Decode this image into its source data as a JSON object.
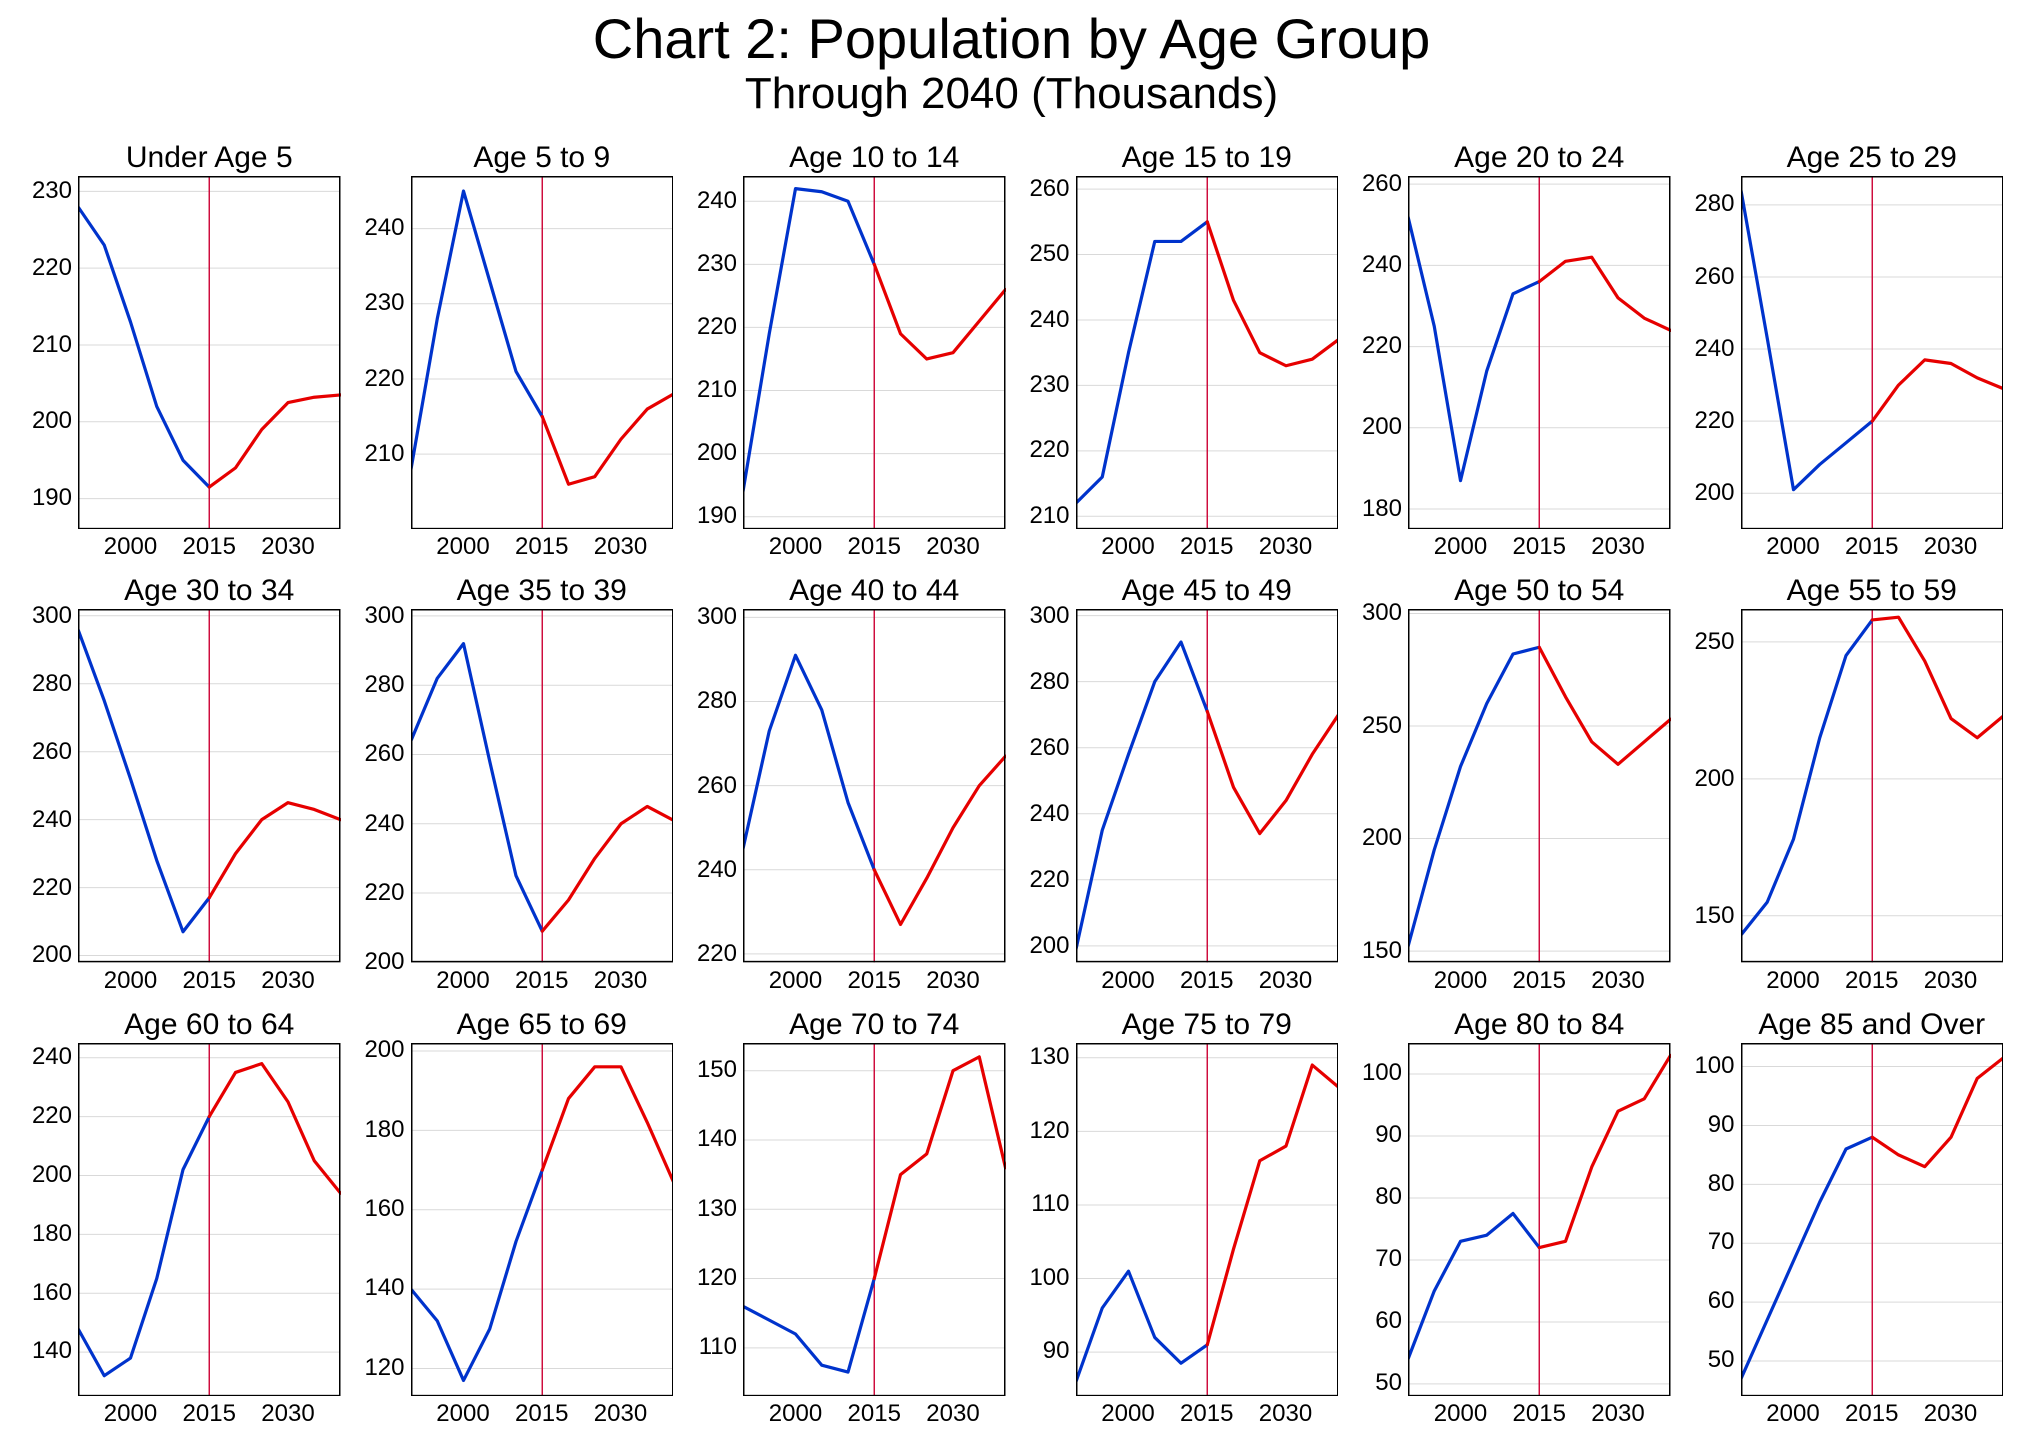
{
  "title_main": "Chart 2: Population by Age Group",
  "title_sub": "Through 2040 (Thousands)",
  "title_main_fontsize": 56,
  "title_sub_fontsize": 44,
  "panel_title_fontsize": 30,
  "tick_fontsize": 24,
  "layout": {
    "rows": 3,
    "cols": 6,
    "outer_padding_x": 20,
    "outer_padding_top": 8,
    "title_block_height": 140,
    "grid_gap_x": 12,
    "grid_gap_y": 10,
    "panel_title_height": 36,
    "y_axis_gutter": 58,
    "x_axis_gutter": 34,
    "box_border_width": 1.5
  },
  "colors": {
    "background": "#ffffff",
    "text": "#000000",
    "border": "#000000",
    "grid": "#d9d9d9",
    "series_blue": "#0033cc",
    "series_red": "#e60000",
    "vline": "#cc0033"
  },
  "line_width": 3.2,
  "vline_width": 1.4,
  "x_domain": [
    1990,
    2040
  ],
  "x_ticks": [
    2000,
    2015,
    2030
  ],
  "x_tick_labels": [
    "2000",
    "2015",
    "2030"
  ],
  "vline_year": 2015,
  "handoff_year": 2015,
  "panels": [
    {
      "title": "Under Age 5",
      "ylim": [
        186,
        232
      ],
      "yticks": [
        190,
        200,
        210,
        220,
        230
      ],
      "series": [
        {
          "x": 1990,
          "y": 228
        },
        {
          "x": 1995,
          "y": 223
        },
        {
          "x": 2000,
          "y": 213
        },
        {
          "x": 2005,
          "y": 202
        },
        {
          "x": 2010,
          "y": 195
        },
        {
          "x": 2015,
          "y": 191.5
        },
        {
          "x": 2020,
          "y": 194
        },
        {
          "x": 2025,
          "y": 199
        },
        {
          "x": 2030,
          "y": 202.5
        },
        {
          "x": 2035,
          "y": 203.2
        },
        {
          "x": 2040,
          "y": 203.5
        }
      ]
    },
    {
      "title": "Age 5 to 9",
      "ylim": [
        200,
        247
      ],
      "yticks": [
        210,
        220,
        230,
        240
      ],
      "series": [
        {
          "x": 1990,
          "y": 208
        },
        {
          "x": 1995,
          "y": 228
        },
        {
          "x": 2000,
          "y": 245
        },
        {
          "x": 2005,
          "y": 233
        },
        {
          "x": 2010,
          "y": 221
        },
        {
          "x": 2015,
          "y": 215
        },
        {
          "x": 2020,
          "y": 206
        },
        {
          "x": 2025,
          "y": 207
        },
        {
          "x": 2030,
          "y": 212
        },
        {
          "x": 2035,
          "y": 216
        },
        {
          "x": 2040,
          "y": 218
        }
      ]
    },
    {
      "title": "Age 10 to 14",
      "ylim": [
        188,
        244
      ],
      "yticks": [
        190,
        200,
        210,
        220,
        230,
        240
      ],
      "series": [
        {
          "x": 1990,
          "y": 194
        },
        {
          "x": 1995,
          "y": 219
        },
        {
          "x": 2000,
          "y": 242
        },
        {
          "x": 2005,
          "y": 241.5
        },
        {
          "x": 2010,
          "y": 240
        },
        {
          "x": 2015,
          "y": 230
        },
        {
          "x": 2020,
          "y": 219
        },
        {
          "x": 2025,
          "y": 215
        },
        {
          "x": 2030,
          "y": 216
        },
        {
          "x": 2035,
          "y": 221
        },
        {
          "x": 2040,
          "y": 226
        }
      ]
    },
    {
      "title": "Age 15 to 19",
      "ylim": [
        208,
        262
      ],
      "yticks": [
        210,
        220,
        230,
        240,
        250,
        260
      ],
      "series": [
        {
          "x": 1990,
          "y": 212
        },
        {
          "x": 1995,
          "y": 216
        },
        {
          "x": 2000,
          "y": 235
        },
        {
          "x": 2005,
          "y": 252
        },
        {
          "x": 2010,
          "y": 252
        },
        {
          "x": 2015,
          "y": 255
        },
        {
          "x": 2020,
          "y": 243
        },
        {
          "x": 2025,
          "y": 235
        },
        {
          "x": 2030,
          "y": 233
        },
        {
          "x": 2035,
          "y": 234
        },
        {
          "x": 2040,
          "y": 237
        }
      ]
    },
    {
      "title": "Age 20 to 24",
      "ylim": [
        175,
        262
      ],
      "yticks": [
        180,
        200,
        220,
        240,
        260
      ],
      "series": [
        {
          "x": 1990,
          "y": 252
        },
        {
          "x": 1995,
          "y": 225
        },
        {
          "x": 2000,
          "y": 187
        },
        {
          "x": 2005,
          "y": 214
        },
        {
          "x": 2010,
          "y": 233
        },
        {
          "x": 2015,
          "y": 236
        },
        {
          "x": 2020,
          "y": 241
        },
        {
          "x": 2025,
          "y": 242
        },
        {
          "x": 2030,
          "y": 232
        },
        {
          "x": 2035,
          "y": 227
        },
        {
          "x": 2040,
          "y": 224
        }
      ]
    },
    {
      "title": "Age 25 to 29",
      "ylim": [
        190,
        288
      ],
      "yticks": [
        200,
        220,
        240,
        260,
        280
      ],
      "series": [
        {
          "x": 1990,
          "y": 284
        },
        {
          "x": 1995,
          "y": 243
        },
        {
          "x": 2000,
          "y": 201
        },
        {
          "x": 2005,
          "y": 208
        },
        {
          "x": 2010,
          "y": 214
        },
        {
          "x": 2015,
          "y": 220
        },
        {
          "x": 2020,
          "y": 230
        },
        {
          "x": 2025,
          "y": 237
        },
        {
          "x": 2030,
          "y": 236
        },
        {
          "x": 2035,
          "y": 232
        },
        {
          "x": 2040,
          "y": 229
        }
      ]
    },
    {
      "title": "Age 30 to 34",
      "ylim": [
        198,
        302
      ],
      "yticks": [
        200,
        220,
        240,
        260,
        280,
        300
      ],
      "series": [
        {
          "x": 1990,
          "y": 296
        },
        {
          "x": 1995,
          "y": 275
        },
        {
          "x": 2000,
          "y": 252
        },
        {
          "x": 2005,
          "y": 228
        },
        {
          "x": 2010,
          "y": 207
        },
        {
          "x": 2015,
          "y": 217
        },
        {
          "x": 2020,
          "y": 230
        },
        {
          "x": 2025,
          "y": 240
        },
        {
          "x": 2030,
          "y": 245
        },
        {
          "x": 2035,
          "y": 243
        },
        {
          "x": 2040,
          "y": 240
        }
      ]
    },
    {
      "title": "Age 35 to 39",
      "ylim": [
        200,
        302
      ],
      "yticks": [
        200,
        220,
        240,
        260,
        280,
        300
      ],
      "series": [
        {
          "x": 1990,
          "y": 264
        },
        {
          "x": 1995,
          "y": 282
        },
        {
          "x": 2000,
          "y": 292
        },
        {
          "x": 2005,
          "y": 258
        },
        {
          "x": 2010,
          "y": 225
        },
        {
          "x": 2015,
          "y": 209
        },
        {
          "x": 2020,
          "y": 218
        },
        {
          "x": 2025,
          "y": 230
        },
        {
          "x": 2030,
          "y": 240
        },
        {
          "x": 2035,
          "y": 245
        },
        {
          "x": 2040,
          "y": 241
        }
      ]
    },
    {
      "title": "Age 40 to 44",
      "ylim": [
        218,
        302
      ],
      "yticks": [
        220,
        240,
        260,
        280,
        300
      ],
      "series": [
        {
          "x": 1990,
          "y": 245
        },
        {
          "x": 1995,
          "y": 273
        },
        {
          "x": 2000,
          "y": 291
        },
        {
          "x": 2005,
          "y": 278
        },
        {
          "x": 2010,
          "y": 256
        },
        {
          "x": 2015,
          "y": 240
        },
        {
          "x": 2020,
          "y": 227
        },
        {
          "x": 2025,
          "y": 238
        },
        {
          "x": 2030,
          "y": 250
        },
        {
          "x": 2035,
          "y": 260
        },
        {
          "x": 2040,
          "y": 267
        }
      ]
    },
    {
      "title": "Age 45 to 49",
      "ylim": [
        195,
        302
      ],
      "yticks": [
        200,
        220,
        240,
        260,
        280,
        300
      ],
      "series": [
        {
          "x": 1990,
          "y": 199
        },
        {
          "x": 1995,
          "y": 235
        },
        {
          "x": 2000,
          "y": 258
        },
        {
          "x": 2005,
          "y": 280
        },
        {
          "x": 2010,
          "y": 292
        },
        {
          "x": 2015,
          "y": 271
        },
        {
          "x": 2020,
          "y": 248
        },
        {
          "x": 2025,
          "y": 234
        },
        {
          "x": 2030,
          "y": 244
        },
        {
          "x": 2035,
          "y": 258
        },
        {
          "x": 2040,
          "y": 270
        }
      ]
    },
    {
      "title": "Age 50 to 54",
      "ylim": [
        145,
        302
      ],
      "yticks": [
        150,
        200,
        250,
        300
      ],
      "series": [
        {
          "x": 1990,
          "y": 152
        },
        {
          "x": 1995,
          "y": 195
        },
        {
          "x": 2000,
          "y": 232
        },
        {
          "x": 2005,
          "y": 260
        },
        {
          "x": 2010,
          "y": 282
        },
        {
          "x": 2015,
          "y": 285
        },
        {
          "x": 2020,
          "y": 263
        },
        {
          "x": 2025,
          "y": 243
        },
        {
          "x": 2030,
          "y": 233
        },
        {
          "x": 2035,
          "y": 243
        },
        {
          "x": 2040,
          "y": 253
        }
      ]
    },
    {
      "title": "Age 55 to 59",
      "ylim": [
        133,
        262
      ],
      "yticks": [
        150,
        200,
        250
      ],
      "series": [
        {
          "x": 1990,
          "y": 143
        },
        {
          "x": 1995,
          "y": 155
        },
        {
          "x": 2000,
          "y": 178
        },
        {
          "x": 2005,
          "y": 215
        },
        {
          "x": 2010,
          "y": 245
        },
        {
          "x": 2015,
          "y": 258
        },
        {
          "x": 2020,
          "y": 259
        },
        {
          "x": 2025,
          "y": 243
        },
        {
          "x": 2030,
          "y": 222
        },
        {
          "x": 2035,
          "y": 215
        },
        {
          "x": 2040,
          "y": 223
        }
      ]
    },
    {
      "title": "Age 60 to 64",
      "ylim": [
        125,
        245
      ],
      "yticks": [
        140,
        160,
        180,
        200,
        220,
        240
      ],
      "series": [
        {
          "x": 1990,
          "y": 148
        },
        {
          "x": 1995,
          "y": 132
        },
        {
          "x": 2000,
          "y": 138
        },
        {
          "x": 2005,
          "y": 165
        },
        {
          "x": 2010,
          "y": 202
        },
        {
          "x": 2015,
          "y": 220
        },
        {
          "x": 2020,
          "y": 235
        },
        {
          "x": 2025,
          "y": 238
        },
        {
          "x": 2030,
          "y": 225
        },
        {
          "x": 2035,
          "y": 205
        },
        {
          "x": 2040,
          "y": 194
        }
      ]
    },
    {
      "title": "Age 65 to 69",
      "ylim": [
        113,
        202
      ],
      "yticks": [
        120,
        140,
        160,
        180,
        200
      ],
      "series": [
        {
          "x": 1990,
          "y": 140
        },
        {
          "x": 1995,
          "y": 132
        },
        {
          "x": 2000,
          "y": 117
        },
        {
          "x": 2005,
          "y": 130
        },
        {
          "x": 2010,
          "y": 152
        },
        {
          "x": 2015,
          "y": 170
        },
        {
          "x": 2020,
          "y": 188
        },
        {
          "x": 2025,
          "y": 196
        },
        {
          "x": 2030,
          "y": 196
        },
        {
          "x": 2035,
          "y": 182
        },
        {
          "x": 2040,
          "y": 167
        }
      ]
    },
    {
      "title": "Age 70 to 74",
      "ylim": [
        103,
        154
      ],
      "yticks": [
        110,
        120,
        130,
        140,
        150
      ],
      "series": [
        {
          "x": 1990,
          "y": 116
        },
        {
          "x": 1995,
          "y": 114
        },
        {
          "x": 2000,
          "y": 112
        },
        {
          "x": 2005,
          "y": 107.5
        },
        {
          "x": 2010,
          "y": 106.5
        },
        {
          "x": 2015,
          "y": 120
        },
        {
          "x": 2020,
          "y": 135
        },
        {
          "x": 2025,
          "y": 138
        },
        {
          "x": 2030,
          "y": 150
        },
        {
          "x": 2035,
          "y": 152
        },
        {
          "x": 2040,
          "y": 136
        }
      ]
    },
    {
      "title": "Age 75 to 79",
      "ylim": [
        84,
        132
      ],
      "yticks": [
        90,
        100,
        110,
        120,
        130
      ],
      "series": [
        {
          "x": 1990,
          "y": 86
        },
        {
          "x": 1995,
          "y": 96
        },
        {
          "x": 2000,
          "y": 101
        },
        {
          "x": 2005,
          "y": 92
        },
        {
          "x": 2010,
          "y": 88.5
        },
        {
          "x": 2015,
          "y": 91
        },
        {
          "x": 2020,
          "y": 104
        },
        {
          "x": 2025,
          "y": 116
        },
        {
          "x": 2030,
          "y": 118
        },
        {
          "x": 2035,
          "y": 129
        },
        {
          "x": 2040,
          "y": 126
        }
      ]
    },
    {
      "title": "Age 80 to 84",
      "ylim": [
        48,
        105
      ],
      "yticks": [
        50,
        60,
        70,
        80,
        90,
        100
      ],
      "series": [
        {
          "x": 1990,
          "y": 54
        },
        {
          "x": 1995,
          "y": 65
        },
        {
          "x": 2000,
          "y": 73
        },
        {
          "x": 2005,
          "y": 74
        },
        {
          "x": 2010,
          "y": 77.5
        },
        {
          "x": 2015,
          "y": 72
        },
        {
          "x": 2020,
          "y": 73
        },
        {
          "x": 2025,
          "y": 85
        },
        {
          "x": 2030,
          "y": 94
        },
        {
          "x": 2035,
          "y": 96
        },
        {
          "x": 2040,
          "y": 103
        }
      ]
    },
    {
      "title": "Age 85 and Over",
      "ylim": [
        44,
        104
      ],
      "yticks": [
        50,
        60,
        70,
        80,
        90,
        100
      ],
      "series": [
        {
          "x": 1990,
          "y": 47
        },
        {
          "x": 1995,
          "y": 57
        },
        {
          "x": 2000,
          "y": 67
        },
        {
          "x": 2005,
          "y": 77
        },
        {
          "x": 2010,
          "y": 86
        },
        {
          "x": 2015,
          "y": 88
        },
        {
          "x": 2020,
          "y": 85
        },
        {
          "x": 2025,
          "y": 83
        },
        {
          "x": 2030,
          "y": 88
        },
        {
          "x": 2035,
          "y": 98
        },
        {
          "x": 2040,
          "y": 101.5
        }
      ]
    }
  ]
}
